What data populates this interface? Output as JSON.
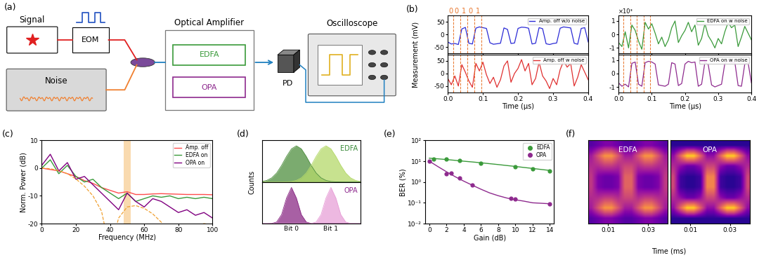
{
  "diagram": {
    "panel": "(a)",
    "signal": "Signal",
    "eom": "EOM",
    "noise": "Noise",
    "amplifier": "Optical Amplifier",
    "edfa": "EDFA",
    "opa": "OPA",
    "pd": "PD",
    "oscilloscope": "Oscilloscope"
  },
  "chart_data": [
    {
      "type": "line",
      "panel": "(b)",
      "ylabel": "Measurement (mV)",
      "xlabel": "Time (μs)",
      "xlim": [
        0.0,
        0.4
      ],
      "xticks": [
        0.0,
        0.1,
        0.2,
        0.3,
        0.4
      ],
      "x": [
        0.0,
        0.01,
        0.02,
        0.03,
        0.04,
        0.05,
        0.06,
        0.07,
        0.08,
        0.09,
        0.1,
        0.11,
        0.12,
        0.13,
        0.14,
        0.15,
        0.16,
        0.17,
        0.18,
        0.19,
        0.2,
        0.21,
        0.22,
        0.23,
        0.24,
        0.25,
        0.26,
        0.27,
        0.28,
        0.29,
        0.3,
        0.31,
        0.32,
        0.33,
        0.34,
        0.35,
        0.36,
        0.37,
        0.38,
        0.39,
        0.4
      ],
      "bit_labels": [
        "0",
        "0",
        "1",
        "0",
        "1"
      ],
      "bit_color": "#e8742a",
      "bit_boundaries": [
        0.0,
        0.015,
        0.035,
        0.055,
        0.075,
        0.095
      ],
      "legend": "upper right",
      "columns": [
        {
          "ylim": [
            -75,
            75
          ],
          "yticks": [
            -50,
            0,
            50
          ],
          "series": [
            {
              "name": "Amp. off w/o noise",
              "color": "#2b2bd6",
              "values": [
                -30,
                -38,
                -36,
                -40,
                22,
                28,
                -35,
                -38,
                25,
                30,
                27,
                24,
                -33,
                -39,
                -37,
                -35,
                26,
                20,
                -36,
                -34,
                24,
                29,
                28,
                25,
                -38,
                -35,
                27,
                23,
                -37,
                -40,
                -36,
                -34,
                25,
                30,
                28,
                26,
                -35,
                -39,
                24,
                27,
                -30
              ]
            },
            {
              "name": "Amp. off w noise",
              "color": "#e03030",
              "values": [
                -20,
                -45,
                -10,
                -50,
                35,
                5,
                -30,
                -55,
                40,
                10,
                45,
                -5,
                -40,
                -15,
                -55,
                -25,
                30,
                50,
                -35,
                0,
                20,
                55,
                10,
                40,
                -45,
                -20,
                45,
                -10,
                -30,
                -60,
                -20,
                -45,
                15,
                50,
                25,
                40,
                -50,
                -15,
                35,
                5,
                -25
              ]
            }
          ]
        },
        {
          "ylim": [
            -1400,
            1400
          ],
          "yticks": [
            {
              "value": -1000,
              "label": "-1"
            },
            {
              "value": 0,
              "label": "0"
            },
            {
              "value": 1000,
              "label": "1"
            }
          ],
          "multiplier_label": "×10³",
          "series": [
            {
              "name": "EDFA on w noise",
              "color": "#3a9a3a",
              "values": [
                -600,
                -900,
                200,
                -1000,
                700,
                300,
                -500,
                -1100,
                900,
                400,
                800,
                100,
                -700,
                -200,
                -900,
                -400,
                500,
                1000,
                -600,
                -100,
                300,
                900,
                200,
                700,
                -800,
                -300,
                800,
                -100,
                -500,
                -1000,
                -300,
                -700,
                200,
                900,
                500,
                700,
                -900,
                -200,
                600,
                100,
                -400
              ]
            },
            {
              "name": "OPA on w noise",
              "color": "#8e2a8e",
              "values": [
                -700,
                -950,
                -800,
                -1000,
                750,
                850,
                -800,
                -950,
                800,
                900,
                850,
                700,
                -850,
                -900,
                -950,
                -800,
                800,
                700,
                -900,
                -750,
                700,
                900,
                800,
                850,
                -950,
                -800,
                850,
                650,
                -850,
                -1000,
                -900,
                -800,
                750,
                950,
                800,
                850,
                -900,
                -950,
                700,
                800,
                -700
              ]
            }
          ]
        }
      ]
    },
    {
      "type": "line",
      "panel": "(c)",
      "xlabel": "Frequency (MHz)",
      "ylabel": "Norm. Power (dB)",
      "xlim": [
        0,
        100
      ],
      "xticks": [
        0,
        20,
        40,
        60,
        80,
        100
      ],
      "ylim": [
        -20,
        10
      ],
      "yticks": [
        -20,
        -10,
        0,
        10
      ],
      "legend": "upper right",
      "x": [
        0,
        5,
        10,
        15,
        20,
        25,
        30,
        35,
        40,
        45,
        50,
        55,
        60,
        65,
        70,
        75,
        80,
        85,
        90,
        95,
        100
      ],
      "band": [
        48,
        52
      ],
      "band_color": "#f5c27a",
      "envelope": {
        "color": "#f0a030",
        "line_style": "dashed",
        "values": [
          0,
          -0.2,
          -0.9,
          -2,
          -3.9,
          -6.5,
          -10,
          -15.5,
          -30,
          -18,
          -14,
          -13.5,
          -14.5,
          -16.5,
          -19.5,
          -24,
          -35,
          -25,
          -21,
          -20,
          -20.5
        ]
      },
      "series": [
        {
          "name": "Amp. off",
          "color": "#ff4d4d",
          "values": [
            0,
            -0.5,
            -1,
            -2,
            -3,
            -4.5,
            -5.5,
            -7,
            -8,
            -9,
            -8.5,
            -9.5,
            -9.5,
            -9.3,
            -9.2,
            -9.3,
            -9.4,
            -9.5,
            -9.5,
            -9.5,
            -9.6
          ]
        },
        {
          "name": "EDFA on",
          "color": "#3a9a3a",
          "values": [
            0,
            3,
            -2,
            1,
            -3,
            -5,
            -4,
            -7,
            -9,
            -11,
            -9,
            -12,
            -11,
            -10,
            -10.5,
            -10,
            -11,
            -10.5,
            -11,
            -10.5,
            -11
          ]
        },
        {
          "name": "OPA on",
          "color": "#800080",
          "values": [
            1,
            5,
            -1,
            2,
            -4,
            -3,
            -6,
            -9,
            -12,
            -15,
            -9,
            -12,
            -14,
            -11,
            -12,
            -14,
            -16,
            -15,
            -17,
            -16,
            -18
          ]
        }
      ]
    },
    {
      "type": "area",
      "panel": "(d)",
      "ylabel": "Counts",
      "tick_labels": "x",
      "xlim": [
        0,
        10
      ],
      "ylim": [
        0,
        1.15
      ],
      "xticks": [
        {
          "value": 3,
          "label": "Bit 0"
        },
        {
          "value": 7,
          "label": "Bit 1"
        }
      ],
      "x": [
        0,
        0.5,
        1,
        1.5,
        2,
        2.5,
        3,
        3.5,
        4,
        4.5,
        5,
        5.5,
        6,
        6.5,
        7,
        7.5,
        8,
        8.5,
        9,
        9.5,
        10
      ],
      "panels": [
        {
          "label": "EDFA",
          "color": "#3a8a3a",
          "series": [
            {
              "color": "#4f8f3f",
              "values": [
                0.014,
                0.044,
                0.114,
                0.249,
                0.458,
                0.707,
                0.917,
                1,
                0.917,
                0.707,
                0.458,
                0.249,
                0.114,
                0.044,
                0.014,
                0.004,
                0.001,
                0,
                0,
                0,
                0
              ]
            },
            {
              "color": "#b5d96a",
              "values": [
                0,
                0,
                0,
                0,
                0.001,
                0.004,
                0.014,
                0.044,
                0.114,
                0.249,
                0.458,
                0.707,
                0.917,
                1,
                0.917,
                0.707,
                0.458,
                0.249,
                0.114,
                0.044,
                0.014
              ]
            }
          ]
        },
        {
          "label": "OPA",
          "color": "#8e2a8e",
          "series": [
            {
              "color": "#8b2b86",
              "values": [
                0,
                0,
                0.004,
                0.044,
                0.249,
                0.707,
                1,
                0.707,
                0.249,
                0.044,
                0.004,
                0,
                0,
                0,
                0,
                0,
                0,
                0,
                0,
                0,
                0
              ]
            },
            {
              "color": "#e8a0d8",
              "values": [
                0,
                0,
                0,
                0,
                0,
                0,
                0,
                0,
                0,
                0,
                0.004,
                0.044,
                0.249,
                0.707,
                1,
                0.707,
                0.249,
                0.044,
                0.004,
                0,
                0
              ]
            }
          ]
        }
      ]
    },
    {
      "type": "scatter",
      "panel": "(e)",
      "xlabel": "Gain (dB)",
      "ylabel": "BER (%)",
      "log": "y",
      "xlim": [
        -0.5,
        14.5
      ],
      "xticks": [
        0,
        2,
        4,
        6,
        8,
        10,
        12,
        14
      ],
      "ylim": [
        0.01,
        100
      ],
      "yticks": [
        {
          "value": 0.01,
          "label": "10⁻²"
        },
        {
          "value": 0.1,
          "label": "10⁻¹"
        },
        {
          "value": 1,
          "label": "10⁰"
        },
        {
          "value": 10,
          "label": "10¹"
        },
        {
          "value": 100,
          "label": "10²"
        }
      ],
      "legend": "upper right",
      "fit_x": [
        0,
        1,
        2,
        3,
        4,
        5,
        6,
        7,
        8,
        9,
        10,
        11,
        12,
        13,
        14
      ],
      "series": [
        {
          "name": "EDFA",
          "color": "#3a9a3a",
          "marker": "o",
          "x": [
            0.5,
            2,
            3.5,
            6,
            10,
            12,
            14
          ],
          "values": [
            13,
            12.5,
            11,
            8,
            5.5,
            4.2,
            3.5
          ],
          "fit": [
            14,
            13,
            12,
            11,
            10,
            9.2,
            8.4,
            7.6,
            6.9,
            6.2,
            5.6,
            5,
            4.5,
            4,
            3.6
          ]
        },
        {
          "name": "OPA",
          "color": "#8e2a8e",
          "marker": "o",
          "x": [
            0,
            2,
            2.5,
            3.5,
            5,
            9.5,
            10,
            14
          ],
          "values": [
            10,
            2.5,
            2.6,
            1.5,
            0.7,
            0.16,
            0.15,
            0.09
          ],
          "fit": [
            10,
            5.5,
            3.1,
            1.8,
            1.1,
            0.7,
            0.45,
            0.3,
            0.22,
            0.17,
            0.14,
            0.12,
            0.1,
            0.095,
            0.09
          ]
        }
      ]
    },
    {
      "type": "heatmap",
      "panel": "(f)",
      "xlabel": "Time (ms)",
      "tick_labels": "x",
      "xlim": [
        0,
        0.04
      ],
      "xticks": [
        0.01,
        0.03
      ],
      "panels": [
        {
          "label": "EDFA",
          "cells": [
            [
              0.15,
              0.2,
              0.25,
              0.25,
              0.2,
              0.15,
              0.15,
              0.2,
              0.25,
              0.25,
              0.2,
              0.15
            ],
            [
              0.35,
              0.55,
              0.75,
              0.75,
              0.55,
              0.35,
              0.35,
              0.55,
              0.75,
              0.75,
              0.55,
              0.35
            ],
            [
              0.4,
              0.4,
              0.45,
              0.45,
              0.4,
              0.5,
              0.5,
              0.4,
              0.45,
              0.45,
              0.4,
              0.4
            ],
            [
              0.45,
              0.25,
              0.2,
              0.2,
              0.25,
              0.6,
              0.6,
              0.25,
              0.2,
              0.2,
              0.25,
              0.45
            ],
            [
              0.45,
              0.25,
              0.2,
              0.2,
              0.25,
              0.6,
              0.6,
              0.25,
              0.2,
              0.2,
              0.25,
              0.45
            ],
            [
              0.4,
              0.4,
              0.45,
              0.45,
              0.4,
              0.5,
              0.5,
              0.4,
              0.45,
              0.45,
              0.4,
              0.4
            ],
            [
              0.35,
              0.55,
              0.75,
              0.75,
              0.55,
              0.35,
              0.35,
              0.55,
              0.75,
              0.75,
              0.55,
              0.35
            ],
            [
              0.15,
              0.2,
              0.25,
              0.25,
              0.2,
              0.15,
              0.15,
              0.2,
              0.25,
              0.25,
              0.2,
              0.15
            ]
          ]
        },
        {
          "label": "OPA",
          "cells": [
            [
              0.05,
              0.05,
              0.05,
              0.05,
              0.05,
              0.05,
              0.05,
              0.05,
              0.05,
              0.05,
              0.05,
              0.05
            ],
            [
              0.3,
              0.6,
              0.9,
              0.9,
              0.6,
              0.3,
              0.3,
              0.6,
              0.9,
              0.9,
              0.6,
              0.3
            ],
            [
              0.4,
              0.3,
              0.2,
              0.2,
              0.3,
              0.5,
              0.5,
              0.3,
              0.2,
              0.2,
              0.3,
              0.4
            ],
            [
              0.5,
              0.1,
              0.05,
              0.05,
              0.1,
              0.7,
              0.7,
              0.1,
              0.05,
              0.05,
              0.1,
              0.5
            ],
            [
              0.5,
              0.1,
              0.05,
              0.05,
              0.1,
              0.7,
              0.7,
              0.1,
              0.05,
              0.05,
              0.1,
              0.5
            ],
            [
              0.4,
              0.3,
              0.2,
              0.2,
              0.3,
              0.5,
              0.5,
              0.3,
              0.2,
              0.2,
              0.3,
              0.4
            ],
            [
              0.3,
              0.6,
              0.9,
              0.9,
              0.6,
              0.3,
              0.3,
              0.6,
              0.9,
              0.9,
              0.6,
              0.3
            ],
            [
              0.05,
              0.05,
              0.05,
              0.05,
              0.05,
              0.05,
              0.05,
              0.05,
              0.05,
              0.05,
              0.05,
              0.05
            ]
          ]
        }
      ]
    }
  ]
}
